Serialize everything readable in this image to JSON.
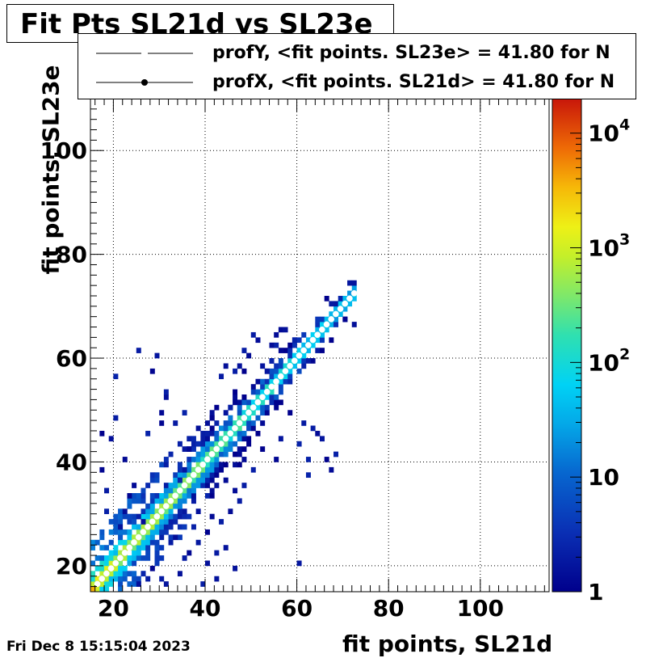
{
  "title": "Fit Pts SL21d vs SL23e",
  "legend": [
    {
      "label": "profY, <fit points. SL23e> =   41.80 for N",
      "marker": "line"
    },
    {
      "label": "profX, <fit points. SL21d> =   41.80 for N",
      "marker": "line-dot"
    }
  ],
  "timestamp": "Fri Dec  8 15:15:04 2023",
  "colors": {
    "grid": "#000000",
    "frame": "#000000",
    "profile_marker": "#ffffff"
  },
  "chart_data": {
    "type": "heatmap",
    "title": "Fit Pts SL21d vs SL23e",
    "xlabel": "fit points, SL21d",
    "ylabel": "fit points, SL23e",
    "xlim": [
      15,
      115
    ],
    "ylim": [
      15,
      110
    ],
    "xticks": [
      20,
      40,
      60,
      80,
      100
    ],
    "yticks": [
      20,
      40,
      60,
      80,
      100
    ],
    "grid": true,
    "z_scale": "log",
    "zlim": [
      1,
      20000
    ],
    "colorbar_ticks": [
      {
        "value": 1,
        "label": "1"
      },
      {
        "value": 10,
        "label": "10"
      },
      {
        "value": 100,
        "label": "10",
        "exp": "2"
      },
      {
        "value": 1000,
        "label": "10",
        "exp": "3"
      },
      {
        "value": 10000,
        "label": "10",
        "exp": "4"
      }
    ],
    "profile": {
      "name": "profX",
      "mean": 41.8,
      "x": [
        16,
        18,
        20,
        22,
        24,
        26,
        28,
        30,
        32,
        34,
        36,
        38,
        40,
        42,
        44,
        46,
        48,
        50,
        52,
        54,
        56,
        58,
        60,
        62,
        64,
        66,
        68,
        70,
        72
      ],
      "y": [
        16,
        18,
        20,
        22,
        24,
        26,
        28,
        30,
        32,
        34,
        36,
        38,
        40,
        42,
        44,
        46,
        48,
        50,
        52,
        54,
        56,
        58,
        60,
        62,
        64,
        66,
        68,
        70,
        72
      ]
    },
    "scatter_outliers": [
      [
        18,
        34
      ],
      [
        18,
        30
      ],
      [
        17,
        38
      ],
      [
        17,
        45
      ],
      [
        19,
        44
      ],
      [
        20,
        48
      ],
      [
        21,
        27
      ],
      [
        22,
        30
      ],
      [
        20,
        56
      ],
      [
        22,
        40
      ],
      [
        23,
        33
      ],
      [
        24,
        35
      ],
      [
        25,
        29
      ],
      [
        26,
        28
      ],
      [
        27,
        45
      ],
      [
        25,
        61
      ],
      [
        28,
        57
      ],
      [
        29,
        60
      ],
      [
        30,
        49
      ],
      [
        30,
        47
      ],
      [
        31,
        52
      ],
      [
        31,
        53
      ],
      [
        33,
        47
      ],
      [
        34,
        43
      ],
      [
        35,
        49
      ],
      [
        36,
        42
      ],
      [
        35,
        38
      ],
      [
        34,
        36
      ],
      [
        41,
        48
      ],
      [
        43,
        56
      ],
      [
        44,
        58
      ],
      [
        45,
        50
      ],
      [
        46,
        57
      ],
      [
        47,
        58
      ],
      [
        48,
        61
      ],
      [
        49,
        60
      ],
      [
        50,
        64
      ],
      [
        51,
        63
      ],
      [
        52,
        58
      ],
      [
        53,
        57
      ],
      [
        54,
        59
      ],
      [
        55,
        62
      ],
      [
        57,
        65
      ],
      [
        59,
        63
      ],
      [
        60,
        43
      ],
      [
        61,
        47
      ],
      [
        62,
        40
      ],
      [
        62,
        37
      ],
      [
        63,
        46
      ],
      [
        64,
        45
      ],
      [
        65,
        44
      ],
      [
        66,
        40
      ],
      [
        67,
        38
      ],
      [
        68,
        41
      ],
      [
        70,
        67
      ],
      [
        72,
        66
      ],
      [
        56,
        44
      ],
      [
        55,
        40
      ],
      [
        52,
        42
      ],
      [
        50,
        38
      ],
      [
        48,
        35
      ],
      [
        47,
        32
      ],
      [
        46,
        34
      ],
      [
        45,
        30
      ],
      [
        43,
        28
      ],
      [
        41,
        29
      ],
      [
        40,
        26
      ],
      [
        38,
        24
      ],
      [
        36,
        22
      ],
      [
        35,
        21
      ],
      [
        42,
        22
      ],
      [
        44,
        23
      ],
      [
        40,
        20
      ],
      [
        34,
        18
      ],
      [
        31,
        16
      ],
      [
        30,
        17
      ],
      [
        28,
        19
      ],
      [
        27,
        17
      ],
      [
        26,
        18
      ],
      [
        25,
        16
      ],
      [
        60,
        20
      ],
      [
        39,
        16
      ],
      [
        42,
        17
      ],
      [
        46,
        19
      ],
      [
        33,
        25
      ],
      [
        37,
        27
      ]
    ],
    "core_width": 2.5,
    "diag_range": [
      15,
      73
    ]
  }
}
